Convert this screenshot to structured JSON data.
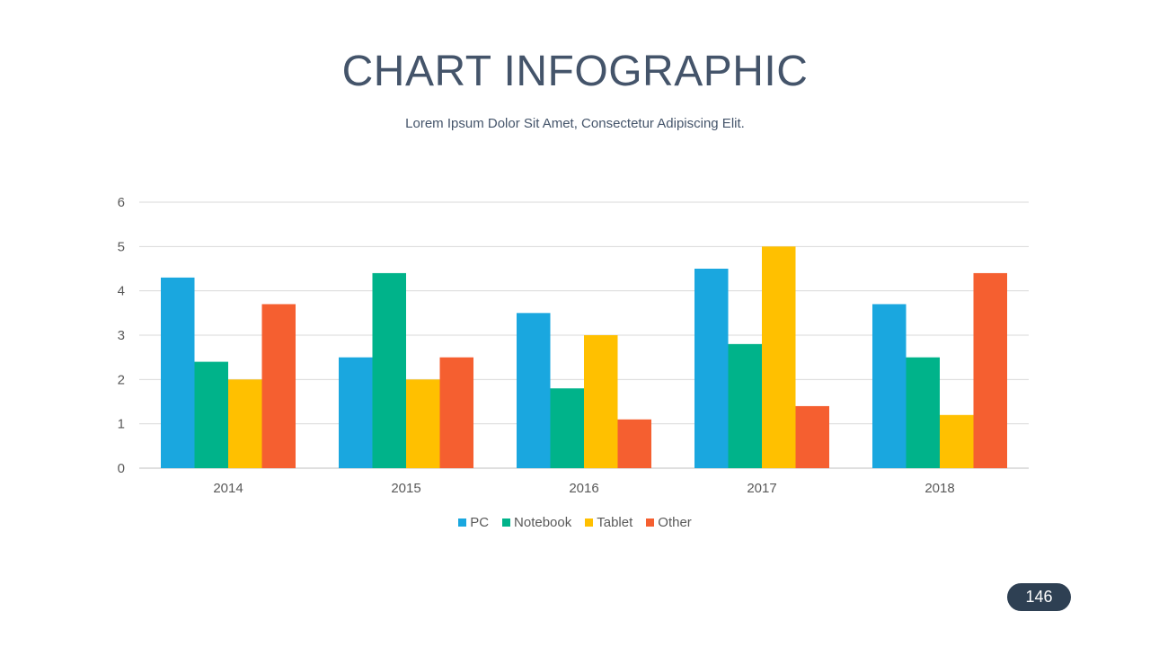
{
  "slide": {
    "title": "CHART INFOGRAPHIC",
    "subtitle": "Lorem Ipsum Dolor Sit Amet, Consectetur Adipiscing Elit.",
    "page_number": "146"
  },
  "chart_data": {
    "type": "bar",
    "title": "",
    "xlabel": "",
    "ylabel": "",
    "ylim": [
      0,
      6
    ],
    "yticks": [
      0,
      1,
      2,
      3,
      4,
      5,
      6
    ],
    "grid": true,
    "legend_position": "bottom",
    "categories": [
      "2014",
      "2015",
      "2016",
      "2017",
      "2018"
    ],
    "series": [
      {
        "name": "PC",
        "color": "#1aa7df",
        "values": [
          4.3,
          2.5,
          3.5,
          4.5,
          3.7
        ]
      },
      {
        "name": "Notebook",
        "color": "#00b38a",
        "values": [
          2.4,
          4.4,
          1.8,
          2.8,
          2.5
        ]
      },
      {
        "name": "Tablet",
        "color": "#ffc000",
        "values": [
          2.0,
          2.0,
          3.0,
          5.0,
          1.2
        ]
      },
      {
        "name": "Other",
        "color": "#f55f30",
        "values": [
          3.7,
          2.5,
          1.1,
          1.4,
          4.4
        ]
      }
    ]
  }
}
